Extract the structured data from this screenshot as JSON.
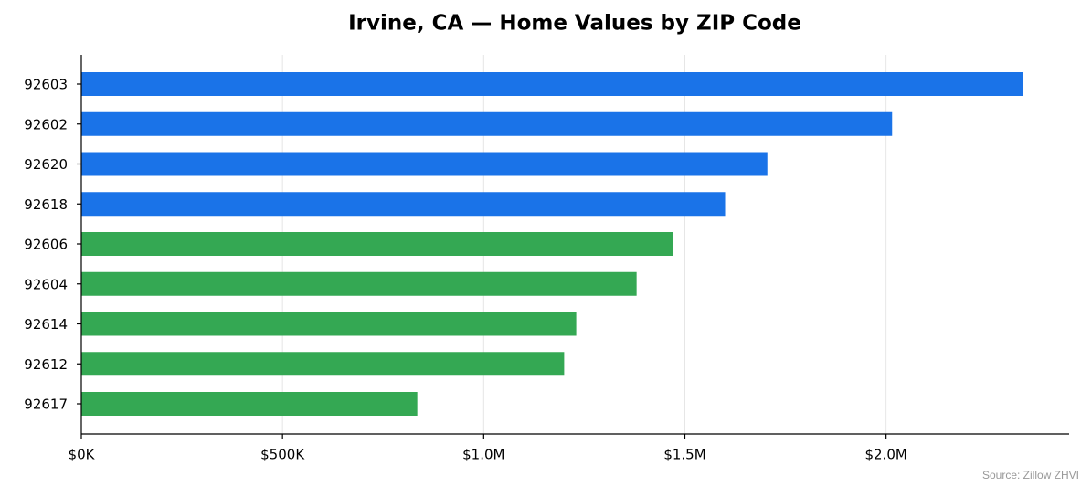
{
  "chart_data": {
    "type": "bar",
    "orientation": "horizontal",
    "title": "Irvine, CA — Home Values by ZIP Code",
    "categories": [
      "92603",
      "92602",
      "92620",
      "92618",
      "92606",
      "92604",
      "92614",
      "92612",
      "92617"
    ],
    "values": [
      2340000,
      2015000,
      1705000,
      1600000,
      1470000,
      1380000,
      1230000,
      1200000,
      835000
    ],
    "colors": [
      "#1a73e8",
      "#1a73e8",
      "#1a73e8",
      "#1a73e8",
      "#34a853",
      "#34a853",
      "#34a853",
      "#34a853",
      "#34a853"
    ],
    "xlim": [
      0,
      2455000
    ],
    "xticks": [
      {
        "value": 0,
        "label": "$0K"
      },
      {
        "value": 500000,
        "label": "$500K"
      },
      {
        "value": 1000000,
        "label": "$1.0M"
      },
      {
        "value": 1500000,
        "label": "$1.5M"
      },
      {
        "value": 2000000,
        "label": "$2.0M"
      }
    ],
    "grid": true,
    "annotation": "Source: Zillow ZHVI"
  }
}
